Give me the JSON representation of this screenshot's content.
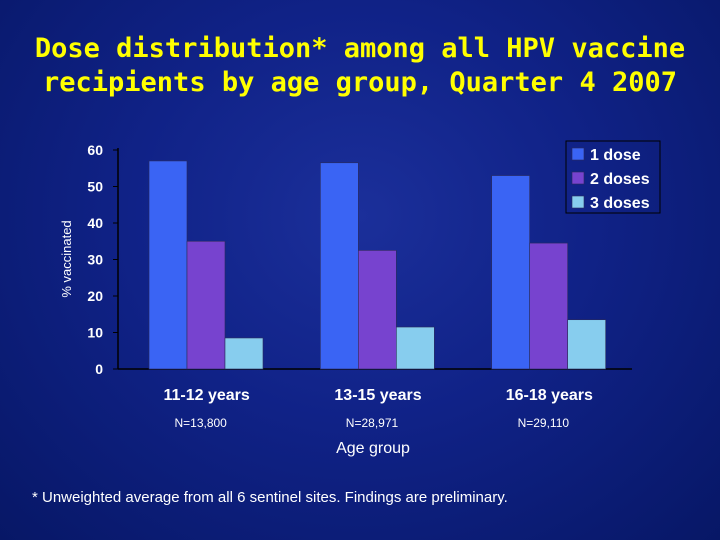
{
  "title": {
    "line1": "Dose distribution* among all HPV vaccine",
    "line2": "recipients by age group, Quarter 4 2007"
  },
  "footnote": "* Unweighted average from all 6 sentinel sites.  Findings are preliminary.",
  "colors": {
    "background": "#102287",
    "title": "#ffff00",
    "series": [
      "#3a64f4",
      "#7743cf",
      "#87cdee"
    ]
  },
  "chart_data": {
    "type": "bar",
    "categories": [
      "11-12 years",
      "13-15 years",
      "16-18 years"
    ],
    "category_sublabels": [
      "N=13,800",
      "N=28,971",
      "N=29,110"
    ],
    "series": [
      {
        "name": "1 dose",
        "values": [
          57,
          56.5,
          53
        ]
      },
      {
        "name": "2 doses",
        "values": [
          35,
          32.5,
          34.5
        ]
      },
      {
        "name": "3 doses",
        "values": [
          8.5,
          11.5,
          13.5
        ]
      }
    ],
    "xlabel": "Age group",
    "ylabel": "% vaccinated",
    "ylim": [
      0,
      60
    ],
    "yticks": [
      0,
      10,
      20,
      30,
      40,
      50,
      60
    ],
    "grid": false,
    "legend_position": "top-right"
  }
}
